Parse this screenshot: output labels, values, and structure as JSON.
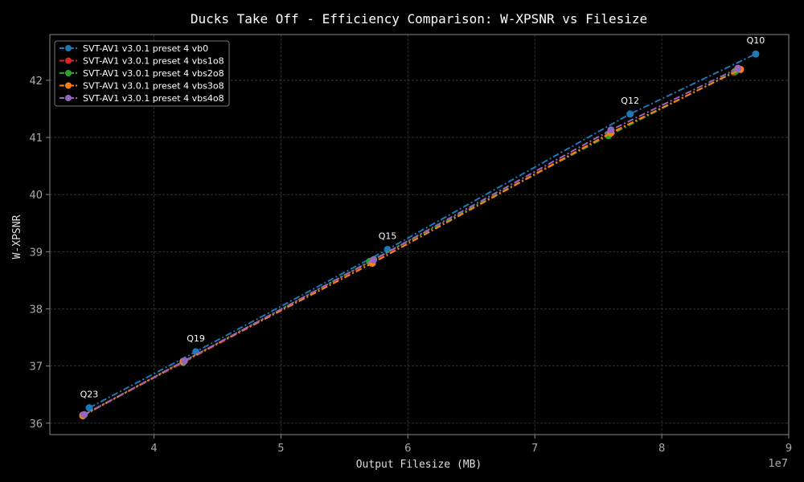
{
  "chart_data": {
    "type": "line",
    "title": "Ducks Take Off - Efficiency Comparison: W-XPSNR vs Filesize",
    "xlabel": "Output Filesize (MB)",
    "ylabel": "W-XPSNR",
    "x_offset_label": "1e7",
    "xlim": [
      3.18,
      9.0
    ],
    "ylim": [
      35.8,
      42.8
    ],
    "x_ticks": [
      4,
      5,
      6,
      7,
      8,
      9
    ],
    "y_ticks": [
      36,
      37,
      38,
      39,
      40,
      41,
      42
    ],
    "grid": true,
    "legend_position": "top-left",
    "series": [
      {
        "name": "SVT-AV1 v3.0.1 preset 4 vb0",
        "color": "#1f77b4",
        "x": [
          3.49,
          4.33,
          5.84,
          7.75,
          8.74
        ],
        "y": [
          36.27,
          37.25,
          39.04,
          41.41,
          42.46
        ]
      },
      {
        "name": "SVT-AV1 v3.0.1 preset 4 vbs1o8",
        "color": "#d62728",
        "x": [
          3.44,
          4.23,
          5.71,
          7.58,
          8.57
        ],
        "y": [
          36.14,
          37.06,
          38.82,
          41.06,
          42.14
        ]
      },
      {
        "name": "SVT-AV1 v3.0.1 preset 4 vbs2o8",
        "color": "#2ca02c",
        "x": [
          3.44,
          4.23,
          5.7,
          7.58,
          8.58
        ],
        "y": [
          36.14,
          37.07,
          38.83,
          41.03,
          42.16
        ]
      },
      {
        "name": "SVT-AV1 v3.0.1 preset 4 vbs3o8",
        "color": "#ff7f0e",
        "x": [
          3.44,
          4.23,
          5.72,
          7.6,
          8.62
        ],
        "y": [
          36.13,
          37.08,
          38.8,
          41.08,
          42.19
        ]
      },
      {
        "name": "SVT-AV1 v3.0.1 preset 4 vbs4o8",
        "color": "#9467bd",
        "x": [
          3.45,
          4.24,
          5.73,
          7.6,
          8.6
        ],
        "y": [
          36.15,
          37.09,
          38.86,
          41.13,
          42.21
        ]
      }
    ],
    "annotations": [
      {
        "text": "Q10",
        "x": 8.74,
        "y": 42.46
      },
      {
        "text": "Q12",
        "x": 7.75,
        "y": 41.41
      },
      {
        "text": "Q15",
        "x": 5.84,
        "y": 39.04
      },
      {
        "text": "Q19",
        "x": 4.33,
        "y": 37.25
      },
      {
        "text": "Q23",
        "x": 3.49,
        "y": 36.27
      }
    ]
  }
}
